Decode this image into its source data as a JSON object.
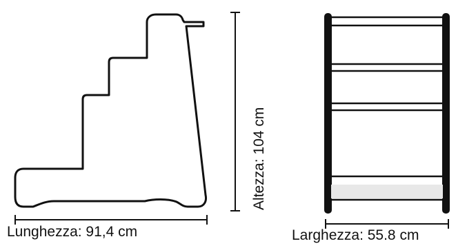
{
  "dimensions": {
    "length_label": "Lunghezza: 91,4 cm",
    "height_label": "Altezza: 104 cm",
    "width_label": "Larghezza: 55.8 cm"
  },
  "colors": {
    "outline": "#111111",
    "rail_fill": "#f7f7f7"
  }
}
